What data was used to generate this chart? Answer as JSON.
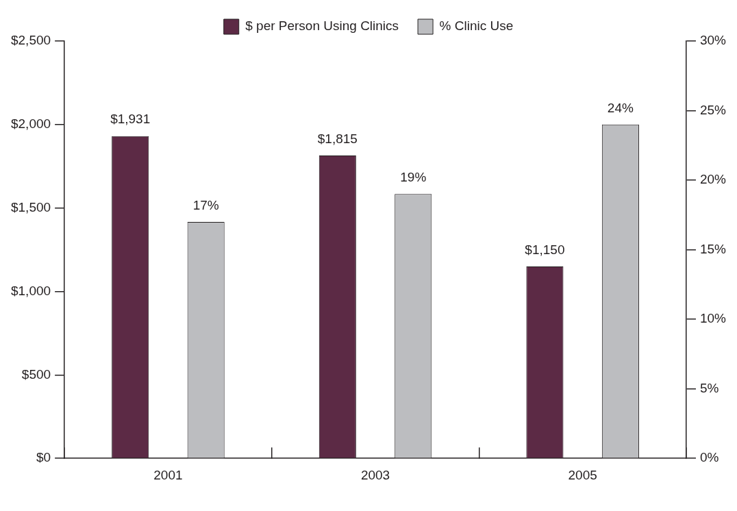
{
  "chart_data": {
    "type": "bar",
    "categories": [
      "2001",
      "2003",
      "2005"
    ],
    "series": [
      {
        "name": "$ per Person Using Clinics",
        "color": "#5c2a45",
        "values": [
          1931,
          1815,
          1150
        ],
        "value_labels": [
          "$1,931",
          "$1,815",
          "$1,150"
        ]
      },
      {
        "name": "% Clinic Use",
        "color": "#bcbdc0",
        "values": [
          17,
          19,
          24
        ],
        "value_labels": [
          "17%",
          "19%",
          "24%"
        ],
        "axis": "y2"
      }
    ],
    "ylim": [
      0,
      2500
    ],
    "yticks": [
      {
        "value": 0,
        "label": "$0"
      },
      {
        "value": 500,
        "label": "$500"
      },
      {
        "value": 1000,
        "label": "$1,000"
      },
      {
        "value": 1500,
        "label": "$1,500"
      },
      {
        "value": 2000,
        "label": "$2,000"
      },
      {
        "value": 2500,
        "label": "$2,500"
      }
    ],
    "y2lim": [
      0,
      30
    ],
    "y2ticks": [
      {
        "value": 0,
        "label": "0%"
      },
      {
        "value": 5,
        "label": "5%"
      },
      {
        "value": 10,
        "label": "10%"
      },
      {
        "value": 15,
        "label": "15%"
      },
      {
        "value": 20,
        "label": "20%"
      },
      {
        "value": 25,
        "label": "25%"
      },
      {
        "value": 30,
        "label": "30%"
      }
    ],
    "grid": false,
    "legend": "top"
  }
}
